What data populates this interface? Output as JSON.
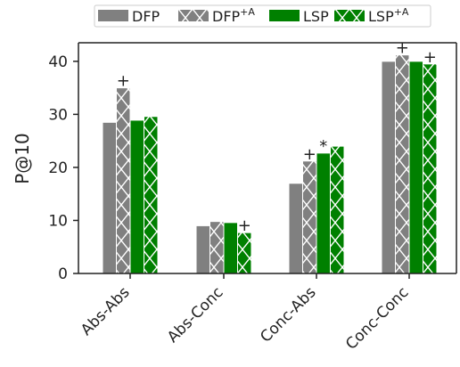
{
  "chart_data": {
    "type": "bar",
    "title": "",
    "xlabel": "",
    "ylabel": "P@10",
    "ylim": [
      0,
      43.5
    ],
    "yticks": [
      0,
      10,
      20,
      30,
      40
    ],
    "grid": false,
    "legend_position": "top",
    "categories": [
      "Abs-Abs",
      "Abs-Conc",
      "Conc-Abs",
      "Conc-Conc"
    ],
    "series": [
      {
        "name": "DFP",
        "name_sup": "",
        "values": [
          28.5,
          9.0,
          17.0,
          40.0
        ],
        "color": "#808080",
        "hatch": false,
        "annotations": [
          "",
          "",
          "",
          ""
        ]
      },
      {
        "name": "DFP",
        "name_sup": "+A",
        "values": [
          35.0,
          9.8,
          21.2,
          41.2
        ],
        "color": "#808080",
        "hatch": true,
        "annotations": [
          "+",
          "",
          "+",
          "+"
        ]
      },
      {
        "name": "LSP",
        "name_sup": "",
        "values": [
          28.9,
          9.6,
          22.7,
          40.0
        ],
        "color": "#008000",
        "hatch": false,
        "annotations": [
          "",
          "",
          "*",
          ""
        ]
      },
      {
        "name": "LSP",
        "name_sup": "+A",
        "values": [
          29.6,
          7.7,
          24.0,
          39.5
        ],
        "color": "#008000",
        "hatch": true,
        "annotations": [
          "",
          "+",
          "",
          "+"
        ]
      }
    ]
  }
}
